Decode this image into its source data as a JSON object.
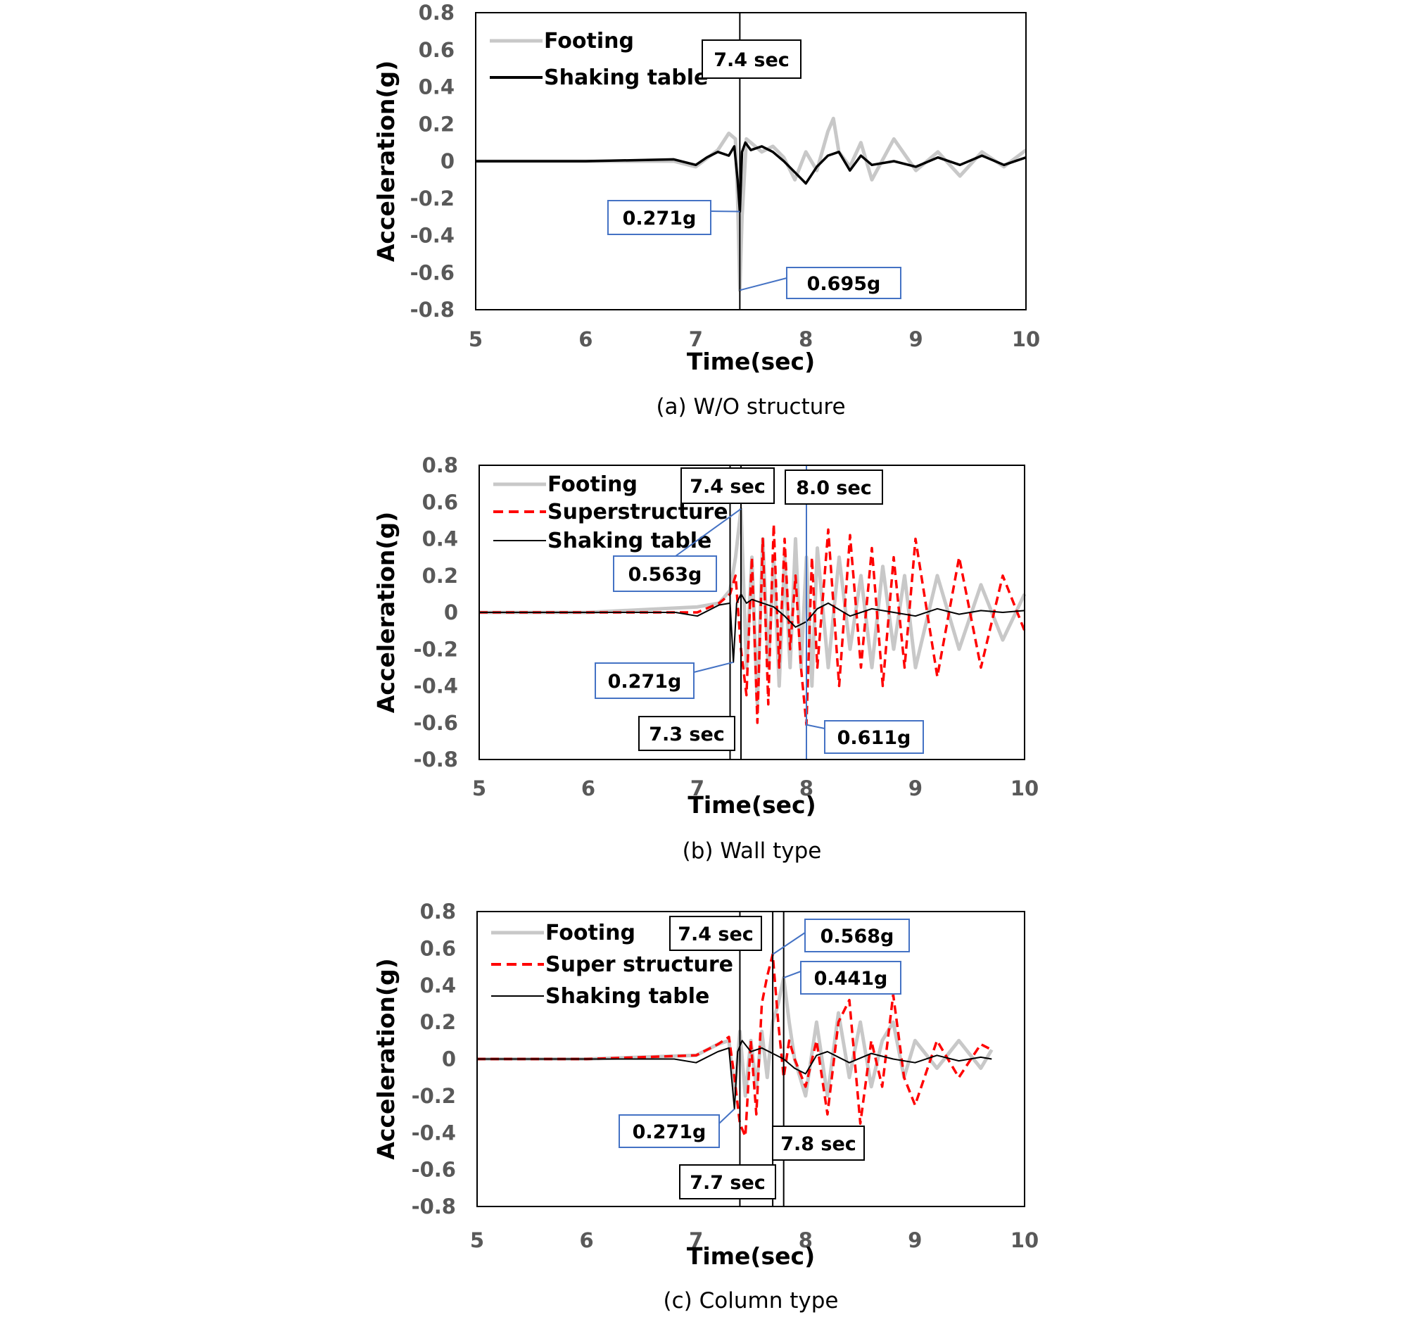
{
  "chart_data": [
    {
      "type": "line",
      "caption": "(a) W/O structure",
      "xlabel": "Time(sec)",
      "ylabel": "Acceleration(g)",
      "xlim": [
        5,
        10
      ],
      "ylim": [
        -0.8,
        0.8
      ],
      "xticks": [
        "5",
        "6",
        "7",
        "8",
        "9",
        "10"
      ],
      "yticks": [
        "0.8",
        "0.6",
        "0.4",
        "0.2",
        "0",
        "-0.2",
        "-0.4",
        "-0.6",
        "-0.8"
      ],
      "legend_position": "top-left",
      "series": [
        {
          "name": "Footing",
          "color": "#c8c8c8",
          "style": "solid-thick",
          "x": [
            5,
            6,
            6.8,
            7.0,
            7.2,
            7.3,
            7.36,
            7.38,
            7.4,
            7.42,
            7.46,
            7.5,
            7.6,
            7.7,
            7.8,
            7.9,
            8.0,
            8.1,
            8.2,
            8.25,
            8.3,
            8.4,
            8.5,
            8.6,
            8.8,
            9.0,
            9.2,
            9.4,
            9.6,
            9.8,
            10.0
          ],
          "y": [
            0,
            0,
            0,
            -0.03,
            0.06,
            0.15,
            0.12,
            -0.2,
            -0.695,
            -0.3,
            0.12,
            0.1,
            0.05,
            0.08,
            0.02,
            -0.1,
            0.05,
            -0.05,
            0.16,
            0.23,
            0.05,
            -0.03,
            0.1,
            -0.1,
            0.12,
            -0.05,
            0.05,
            -0.08,
            0.05,
            -0.03,
            0.06
          ]
        },
        {
          "name": "Shaking table",
          "color": "#000000",
          "style": "solid",
          "x": [
            5,
            6,
            6.8,
            7.0,
            7.1,
            7.2,
            7.3,
            7.35,
            7.38,
            7.4,
            7.42,
            7.45,
            7.5,
            7.6,
            7.7,
            7.8,
            7.9,
            8.0,
            8.1,
            8.2,
            8.3,
            8.4,
            8.5,
            8.6,
            8.8,
            9.0,
            9.2,
            9.4,
            9.6,
            9.8,
            10.0
          ],
          "y": [
            0,
            0,
            0.01,
            -0.02,
            0.02,
            0.05,
            0.03,
            0.08,
            -0.1,
            -0.271,
            0.05,
            0.1,
            0.06,
            0.08,
            0.05,
            0.0,
            -0.06,
            -0.12,
            -0.03,
            0.03,
            0.05,
            -0.05,
            0.03,
            -0.02,
            0.0,
            -0.03,
            0.02,
            -0.02,
            0.03,
            -0.02,
            0.02
          ]
        }
      ],
      "vlines": [
        7.4
      ],
      "annotations": [
        "7.4 sec",
        "0.271g",
        "0.695g"
      ]
    },
    {
      "type": "line",
      "caption": "(b) Wall type",
      "xlabel": "Time(sec)",
      "ylabel": "Acceleration(g)",
      "xlim": [
        5,
        10
      ],
      "ylim": [
        -0.8,
        0.8
      ],
      "xticks": [
        "5",
        "6",
        "7",
        "8",
        "9",
        "10"
      ],
      "yticks": [
        "0.8",
        "0.6",
        "0.4",
        "0.2",
        "0",
        "-0.2",
        "-0.4",
        "-0.6",
        "-0.8"
      ],
      "legend_position": "top-left",
      "series": [
        {
          "name": "Footing",
          "color": "#c8c8c8",
          "style": "solid-thick",
          "x": [
            5,
            6,
            7.0,
            7.2,
            7.3,
            7.35,
            7.4,
            7.45,
            7.5,
            7.55,
            7.6,
            7.65,
            7.7,
            7.75,
            7.8,
            7.85,
            7.9,
            7.95,
            8.0,
            8.05,
            8.1,
            8.2,
            8.3,
            8.4,
            8.5,
            8.6,
            8.7,
            8.8,
            8.9,
            9.0,
            9.2,
            9.4,
            9.6,
            9.8,
            10.0
          ],
          "y": [
            0,
            0,
            0.03,
            0.05,
            0.12,
            0.3,
            0.563,
            -0.3,
            0.3,
            -0.5,
            0.4,
            -0.3,
            0.3,
            -0.4,
            0.3,
            -0.3,
            0.4,
            -0.3,
            0.3,
            -0.4,
            0.35,
            -0.3,
            0.3,
            -0.2,
            0.2,
            -0.3,
            0.25,
            -0.2,
            0.2,
            -0.3,
            0.2,
            -0.2,
            0.15,
            -0.15,
            0.1
          ]
        },
        {
          "name": "Superstructure",
          "color": "#ff0000",
          "style": "dashed",
          "x": [
            5,
            6,
            7.0,
            7.2,
            7.3,
            7.35,
            7.4,
            7.45,
            7.5,
            7.55,
            7.6,
            7.65,
            7.7,
            7.75,
            7.8,
            7.85,
            7.9,
            7.95,
            8.0,
            8.05,
            8.1,
            8.2,
            8.3,
            8.4,
            8.5,
            8.6,
            8.7,
            8.8,
            8.9,
            9.0,
            9.2,
            9.4,
            9.6,
            9.8,
            10.0
          ],
          "y": [
            0,
            0,
            0.0,
            0.05,
            0.1,
            0.2,
            -0.2,
            -0.45,
            0.3,
            -0.6,
            0.4,
            -0.5,
            0.48,
            -0.3,
            0.4,
            -0.2,
            0.2,
            -0.3,
            -0.611,
            0.3,
            -0.3,
            0.45,
            -0.4,
            0.42,
            -0.3,
            0.35,
            -0.4,
            0.3,
            -0.3,
            0.4,
            -0.35,
            0.3,
            -0.3,
            0.2,
            -0.1
          ]
        },
        {
          "name": "Shaking table",
          "color": "#000000",
          "style": "solid",
          "x": [
            5,
            6,
            6.8,
            7.0,
            7.2,
            7.3,
            7.33,
            7.36,
            7.4,
            7.45,
            7.5,
            7.6,
            7.7,
            7.8,
            7.9,
            8.0,
            8.1,
            8.2,
            8.4,
            8.6,
            8.8,
            9.0,
            9.2,
            9.4,
            9.6,
            9.8,
            10.0
          ],
          "y": [
            0,
            0,
            0,
            -0.02,
            0.04,
            0.05,
            -0.271,
            0.05,
            0.1,
            0.05,
            0.07,
            0.05,
            0.03,
            -0.02,
            -0.08,
            -0.05,
            0.02,
            0.05,
            -0.02,
            0.02,
            0.0,
            -0.02,
            0.02,
            -0.01,
            0.01,
            0.0,
            0.01
          ]
        }
      ],
      "vlines": [
        7.3,
        7.4,
        8.0
      ],
      "annotations": [
        "7.4 sec",
        "8.0 sec",
        "0.563g",
        "0.271g",
        "7.3 sec",
        "0.611g"
      ]
    },
    {
      "type": "line",
      "caption": "(c) Column type",
      "xlabel": "Time(sec)",
      "ylabel": "Acceleration(g)",
      "xlim": [
        5,
        10
      ],
      "ylim": [
        -0.8,
        0.8
      ],
      "xticks": [
        "5",
        "6",
        "7",
        "8",
        "9",
        "10"
      ],
      "yticks": [
        "0.8",
        "0.6",
        "0.4",
        "0.2",
        "0",
        "-0.2",
        "-0.4",
        "-0.6",
        "-0.8"
      ],
      "legend_position": "top-left",
      "series": [
        {
          "name": "Footing",
          "color": "#c8c8c8",
          "style": "solid-thick",
          "x": [
            5,
            6,
            7.0,
            7.2,
            7.3,
            7.35,
            7.4,
            7.45,
            7.5,
            7.55,
            7.6,
            7.65,
            7.7,
            7.75,
            7.8,
            7.85,
            7.9,
            8.0,
            8.1,
            8.2,
            8.3,
            8.4,
            8.5,
            8.6,
            8.7,
            8.8,
            8.9,
            9.0,
            9.2,
            9.4,
            9.6,
            9.7
          ],
          "y": [
            0,
            0,
            0.02,
            0.08,
            0.1,
            -0.2,
            0.15,
            -0.2,
            0.1,
            -0.15,
            0.15,
            -0.1,
            0.2,
            0.3,
            0.441,
            0.2,
            0.0,
            -0.2,
            0.2,
            -0.2,
            0.25,
            -0.1,
            0.2,
            -0.15,
            0.1,
            0.2,
            -0.1,
            0.1,
            -0.05,
            0.1,
            -0.05,
            0.05
          ]
        },
        {
          "name": "Super structure",
          "color": "#ff0000",
          "style": "dashed",
          "x": [
            5,
            6,
            7.0,
            7.2,
            7.3,
            7.35,
            7.4,
            7.45,
            7.5,
            7.55,
            7.6,
            7.65,
            7.7,
            7.75,
            7.8,
            7.85,
            7.9,
            8.0,
            8.1,
            8.2,
            8.3,
            8.4,
            8.5,
            8.6,
            8.7,
            8.8,
            8.9,
            9.0,
            9.2,
            9.4,
            9.6,
            9.7
          ],
          "y": [
            0,
            0,
            0.02,
            0.08,
            0.12,
            -0.1,
            -0.35,
            -0.42,
            0.1,
            -0.3,
            0.3,
            0.45,
            0.568,
            0.2,
            -0.1,
            0.1,
            0.0,
            -0.15,
            0.1,
            -0.3,
            0.2,
            0.32,
            -0.35,
            0.1,
            -0.15,
            0.35,
            -0.1,
            -0.25,
            0.1,
            -0.1,
            0.08,
            0.05
          ]
        },
        {
          "name": "Shaking table",
          "color": "#000000",
          "style": "solid",
          "x": [
            5,
            6,
            6.8,
            7.0,
            7.2,
            7.3,
            7.35,
            7.38,
            7.42,
            7.5,
            7.6,
            7.7,
            7.8,
            7.9,
            8.0,
            8.1,
            8.2,
            8.4,
            8.6,
            8.8,
            9.0,
            9.2,
            9.4,
            9.6,
            9.7
          ],
          "y": [
            0,
            0,
            0,
            -0.02,
            0.04,
            0.06,
            -0.271,
            0.04,
            0.1,
            0.04,
            0.06,
            0.03,
            0.0,
            -0.05,
            -0.08,
            0.02,
            0.04,
            -0.02,
            0.03,
            0.0,
            -0.02,
            0.02,
            -0.01,
            0.01,
            0.0
          ]
        }
      ],
      "vlines": [
        7.4,
        7.7,
        7.8
      ],
      "annotations": [
        "7.4 sec",
        "0.568g",
        "0.441g",
        "0.271g",
        "7.8 sec",
        "7.7 sec"
      ]
    }
  ]
}
